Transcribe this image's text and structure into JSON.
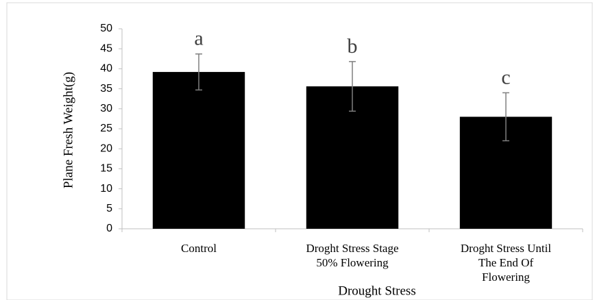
{
  "chart_data": {
    "type": "bar",
    "xlabel": "Drought Stress",
    "ylabel": "Plane Fresh Weight(g)",
    "categories": [
      "Control",
      "Droght Stress Stage\n50% Flowering",
      "Droght Stress Until\nThe End Of\nFlowering"
    ],
    "values": [
      39.2,
      35.6,
      28
    ],
    "errors": [
      4.5,
      6.2,
      6
    ],
    "annotations": [
      "a",
      "b",
      "c"
    ],
    "color": "#000000",
    "ylim": [
      0,
      50
    ],
    "yticks": [
      0,
      5,
      10,
      15,
      20,
      25,
      30,
      35,
      40,
      45,
      50
    ],
    "grid": false
  }
}
